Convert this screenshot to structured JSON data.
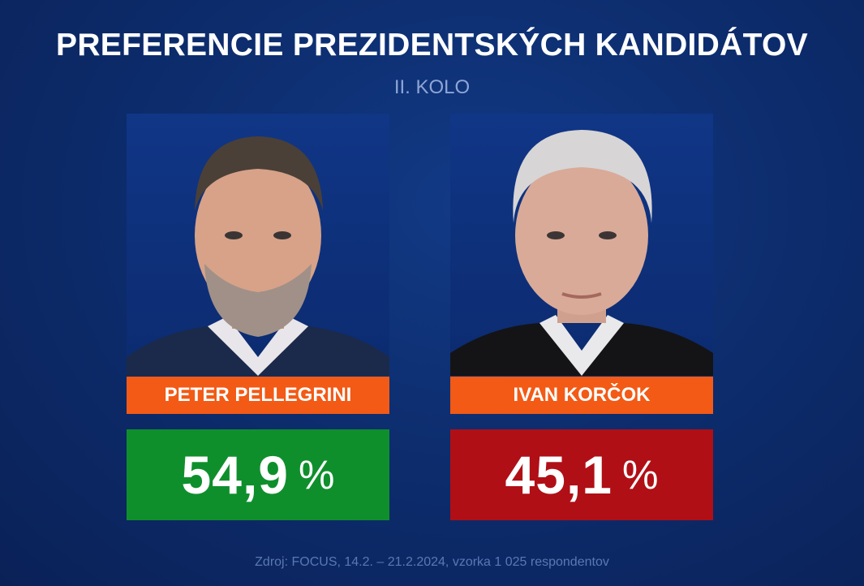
{
  "header": {
    "title": "PREFERENCIE PREZIDENTSKÝCH KANDIDÁTOV",
    "subtitle": "II. KOLO"
  },
  "candidates": [
    {
      "name": "PETER PELLEGRINI",
      "value_text": "54,9",
      "unit": "%",
      "color": "#0f8f2c"
    },
    {
      "name": "IVAN KORČOK",
      "value_text": "45,1",
      "unit": "%",
      "color": "#b00f16"
    }
  ],
  "chart_data": {
    "type": "bar",
    "title": "PREFERENCIE PREZIDENTSKÝCH KANDIDÁTOV",
    "subtitle": "II. KOLO",
    "categories": [
      "PETER PELLEGRINI",
      "IVAN KORČOK"
    ],
    "values": [
      54.9,
      45.1
    ],
    "unit": "%",
    "colors": [
      "#0f8f2c",
      "#b00f16"
    ],
    "name_bar_color": "#f25a16"
  },
  "footer": {
    "source": "Zdroj: FOCUS, 14.2. – 21.2.2024, vzorka 1 025 respondentov"
  }
}
